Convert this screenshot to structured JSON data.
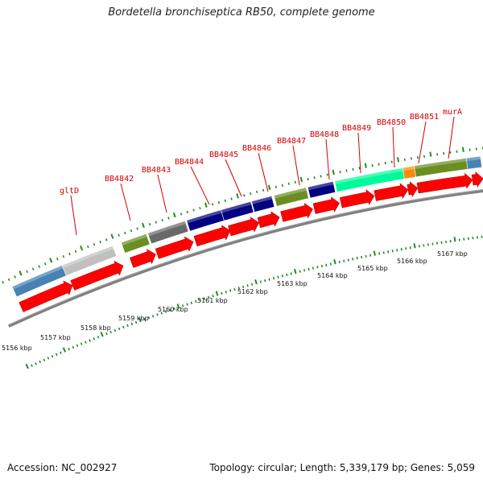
{
  "title": "Bordetella bronchiseptica RB50, complete genome",
  "footer": {
    "accession": "Accession: NC_002927",
    "summary": "Topology: circular; Length: 5,339,179 bp; Genes: 5,059"
  },
  "colors": {
    "gene_label": "#d40000",
    "tick": "#228b22",
    "cds_arrow": "#ff0000",
    "backbone": "#808080"
  },
  "gene_labels": [
    "gltD",
    "BB4842",
    "BB4843",
    "BB4844",
    "BB4845",
    "BB4846",
    "BB4847",
    "BB4848",
    "BB4849",
    "BB4850",
    "BB4851",
    "murA"
  ],
  "ruler_labels": [
    "5156 kbp",
    "5157 kbp",
    "5158 kbp",
    "5159 kbp",
    "5160 kbp",
    "5161 kbp",
    "5162 kbp",
    "5163 kbp",
    "5164 kbp",
    "5165 kbp",
    "5166 kbp",
    "5167 kbp"
  ],
  "feature_blocks": [
    {
      "color": "#4682b4"
    },
    {
      "color": "#c0c0c0"
    },
    {
      "color": "#6b8e23"
    },
    {
      "color": "#696969"
    },
    {
      "color": "#000080"
    },
    {
      "color": "#000080"
    },
    {
      "color": "#000080"
    },
    {
      "color": "#6b8e23"
    },
    {
      "color": "#000080"
    },
    {
      "color": "#00fa9a"
    },
    {
      "color": "#ff8c00"
    },
    {
      "color": "#6b8e23"
    },
    {
      "color": "#4682b4"
    }
  ]
}
